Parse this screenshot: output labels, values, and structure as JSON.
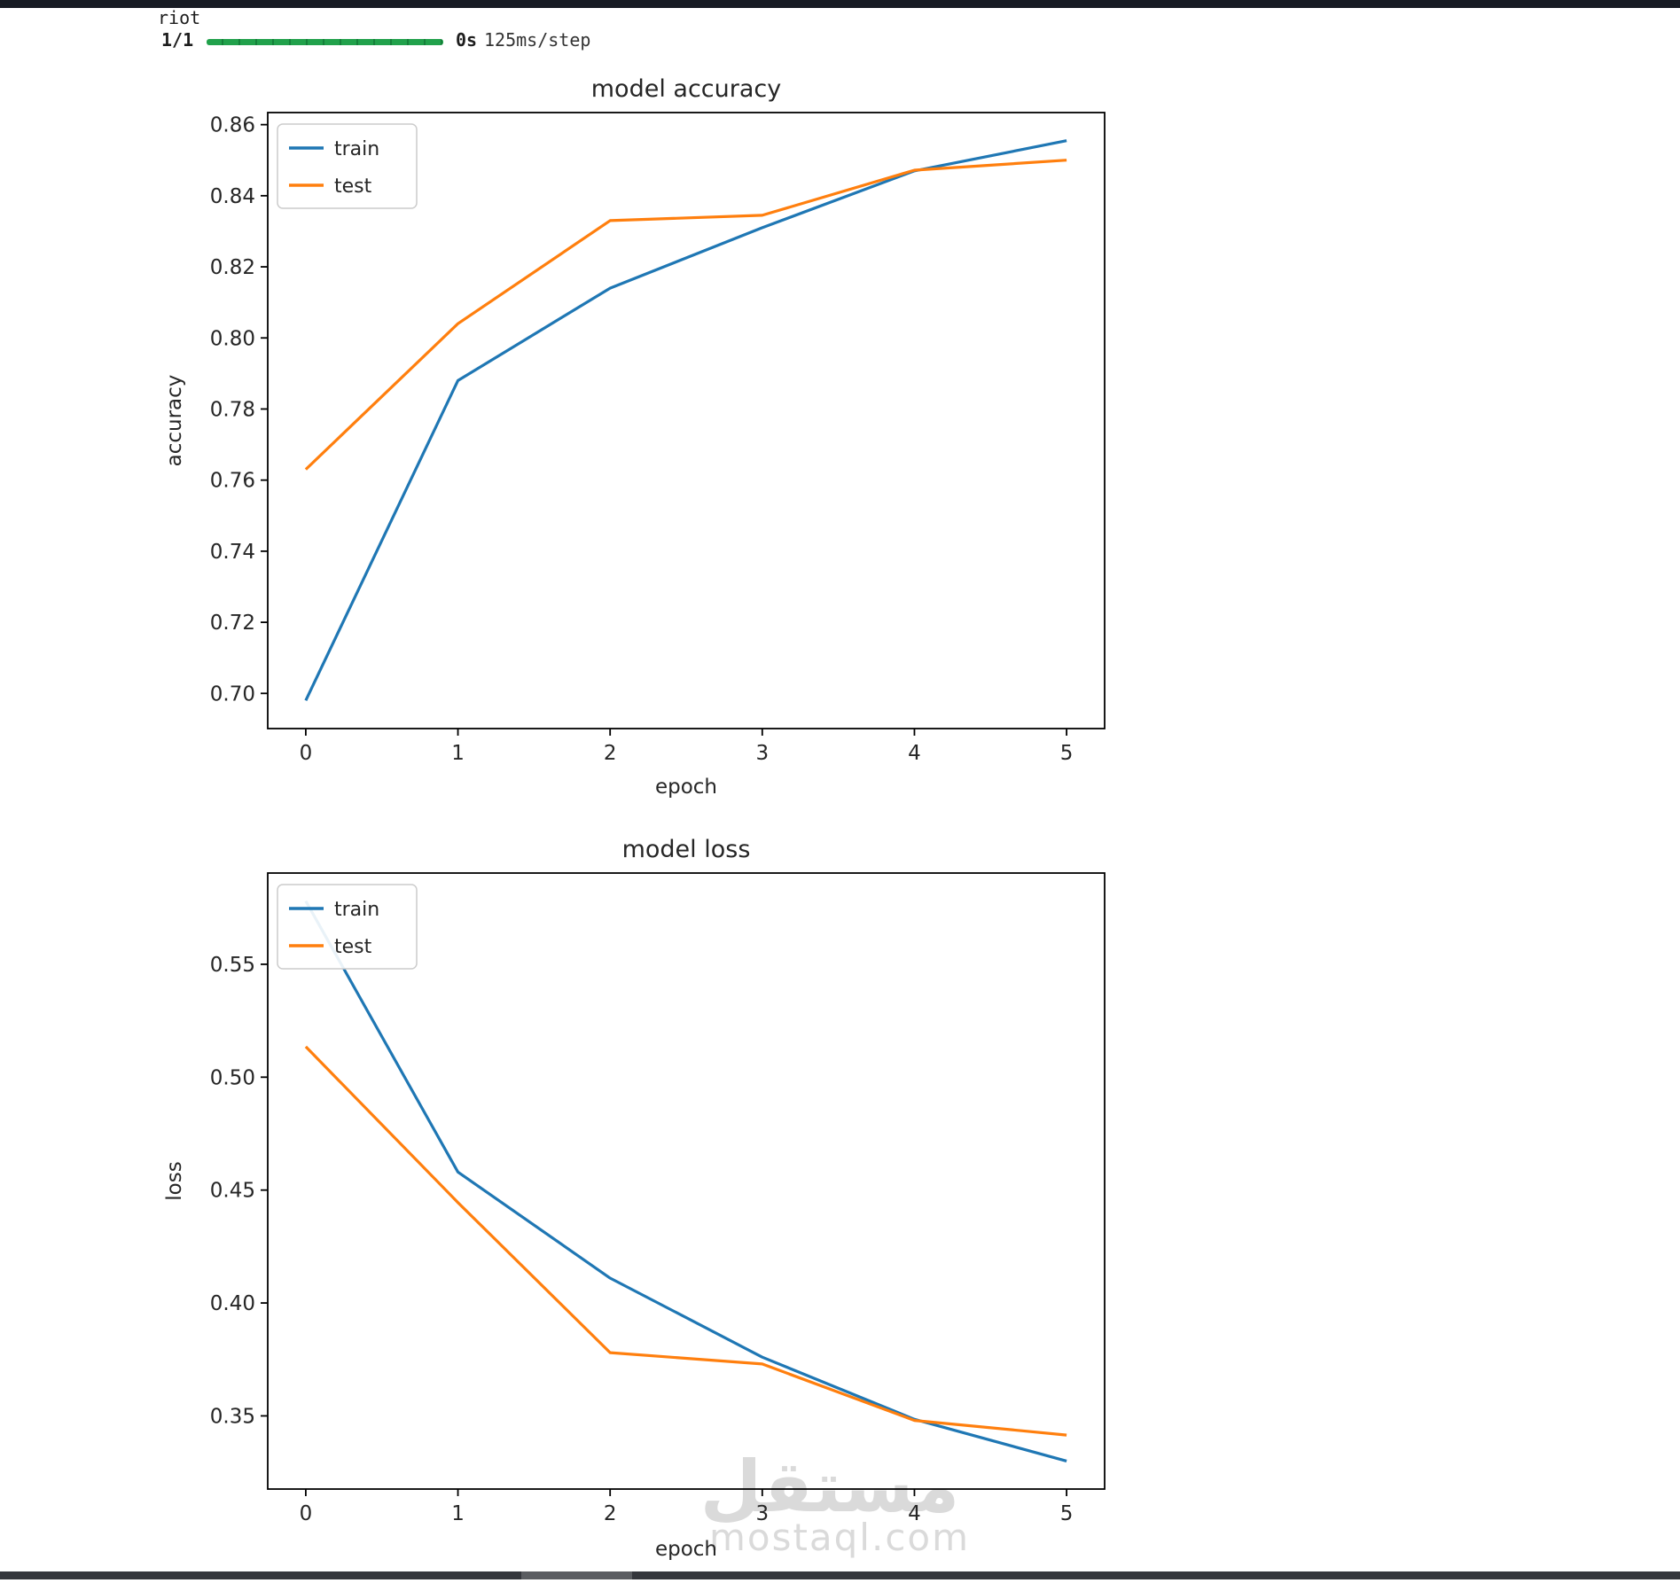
{
  "terminal": {
    "output_label": "riot",
    "progress_prefix": "1/1",
    "progress_time": "0s",
    "progress_rate": "125ms/step"
  },
  "colors": {
    "train": "#1f77b4",
    "test": "#ff7f0e",
    "progress_green": "#21a14b",
    "progress_green_dark": "#15803a",
    "topbar": "#171b24",
    "bottombar": "#35373c",
    "bottombar_segment": "#5b5d61",
    "axis_text": "#262626",
    "watermark": "#dadada"
  },
  "watermark": {
    "arabic": "مستقل",
    "domain": "mostaql.com"
  },
  "chart_data": [
    {
      "type": "line",
      "title": "model accuracy",
      "xlabel": "epoch",
      "ylabel": "accuracy",
      "x": [
        0,
        1,
        2,
        3,
        4,
        5
      ],
      "xlim": [
        -0.25,
        5.25
      ],
      "ylim": [
        0.6901,
        0.8634
      ],
      "xticks": [
        0,
        1,
        2,
        3,
        4,
        5
      ],
      "xtick_labels": [
        "0",
        "1",
        "2",
        "3",
        "4",
        "5"
      ],
      "yticks": [
        0.7,
        0.72,
        0.74,
        0.76,
        0.78,
        0.8,
        0.82,
        0.84,
        0.86
      ],
      "ytick_labels": [
        "0.70",
        "0.72",
        "0.74",
        "0.76",
        "0.78",
        "0.80",
        "0.82",
        "0.84",
        "0.86"
      ],
      "grid": false,
      "legend_position": "upper left",
      "series": [
        {
          "name": "train",
          "color": "#1f77b4",
          "values": [
            0.698,
            0.788,
            0.814,
            0.831,
            0.847,
            0.8555
          ]
        },
        {
          "name": "test",
          "color": "#ff7f0e",
          "values": [
            0.763,
            0.804,
            0.833,
            0.8345,
            0.8472,
            0.85
          ]
        }
      ]
    },
    {
      "type": "line",
      "title": "model loss",
      "xlabel": "epoch",
      "ylabel": "loss",
      "x": [
        0,
        1,
        2,
        3,
        4,
        5
      ],
      "xlim": [
        -0.25,
        5.25
      ],
      "ylim": [
        0.3176,
        0.5904
      ],
      "xticks": [
        0,
        1,
        2,
        3,
        4,
        5
      ],
      "xtick_labels": [
        "0",
        "1",
        "2",
        "3",
        "4",
        "5"
      ],
      "yticks": [
        0.35,
        0.4,
        0.45,
        0.5,
        0.55
      ],
      "ytick_labels": [
        "0.35",
        "0.40",
        "0.45",
        "0.50",
        "0.55"
      ],
      "grid": false,
      "legend_position": "upper left",
      "series": [
        {
          "name": "train",
          "color": "#1f77b4",
          "values": [
            0.578,
            0.458,
            0.411,
            0.376,
            0.3485,
            0.33
          ]
        },
        {
          "name": "test",
          "color": "#ff7f0e",
          "values": [
            0.5135,
            0.4445,
            0.378,
            0.373,
            0.348,
            0.3415
          ]
        }
      ]
    }
  ]
}
